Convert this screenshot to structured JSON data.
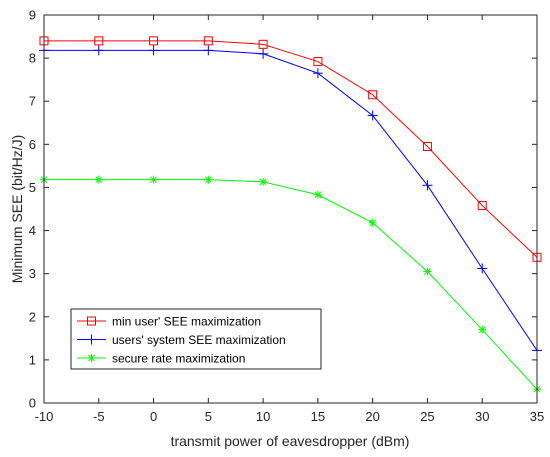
{
  "chart_data": {
    "type": "line",
    "title": "",
    "xlabel": "transmit power of eavesdropper (dBm)",
    "ylabel": "Minimum SEE (bit/Hz/J)",
    "xlim": [
      -10,
      35
    ],
    "ylim": [
      0,
      9
    ],
    "xticks": [
      "-10",
      "-5",
      "0",
      "5",
      "10",
      "15",
      "20",
      "25",
      "30",
      "35"
    ],
    "yticks": [
      "0",
      "1",
      "2",
      "3",
      "4",
      "5",
      "6",
      "7",
      "8",
      "9"
    ],
    "x": [
      -10,
      -5,
      0,
      5,
      10,
      15,
      20,
      25,
      30,
      35
    ],
    "grid": false,
    "legend_position": "bottom-left",
    "series": [
      {
        "name": "min user' SEE maximization",
        "color": "#ff0000",
        "marker": "square",
        "values": [
          8.4,
          8.4,
          8.4,
          8.4,
          8.32,
          7.92,
          7.15,
          5.95,
          4.58,
          3.38
        ]
      },
      {
        "name": "users' system SEE maximization",
        "color": "#0000ff",
        "marker": "plus",
        "values": [
          8.18,
          8.18,
          8.18,
          8.18,
          8.1,
          7.65,
          6.67,
          5.05,
          3.12,
          1.22
        ]
      },
      {
        "name": "secure rate maximization",
        "color": "#00ff00",
        "marker": "asterisk",
        "values": [
          5.18,
          5.18,
          5.18,
          5.18,
          5.13,
          4.83,
          4.18,
          3.05,
          1.7,
          0.32
        ]
      }
    ]
  }
}
